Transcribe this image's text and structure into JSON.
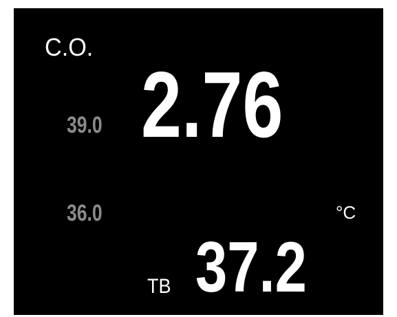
{
  "monitor": {
    "label": "C.O.",
    "value": "2.76",
    "upper_limit": "39.0",
    "lower_limit": "36.0",
    "unit": "°C",
    "sub_label": "TB",
    "sub_value": "37.2"
  }
}
